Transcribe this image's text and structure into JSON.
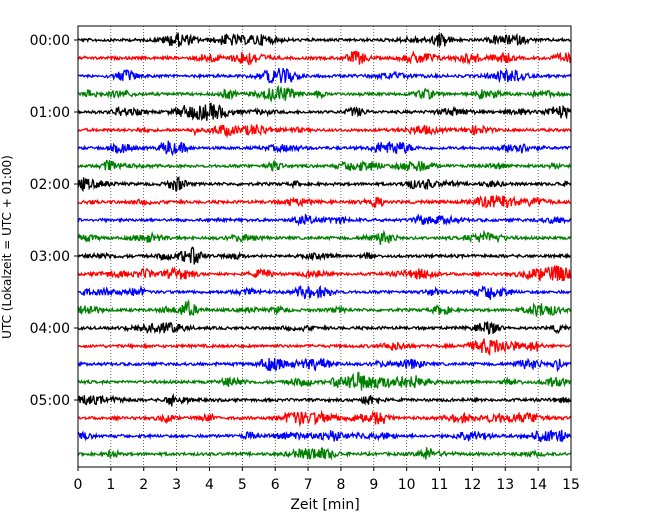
{
  "chart_data": {
    "type": "line",
    "title": "",
    "xlabel": "Zeit  [min]",
    "ylabel": "UTC (Lokalzeit = UTC + 01:00)",
    "xlim": [
      0,
      15
    ],
    "x_ticks": [
      "0",
      "1",
      "2",
      "3",
      "4",
      "5",
      "6",
      "7",
      "8",
      "9",
      "10",
      "11",
      "12",
      "13",
      "14",
      "15"
    ],
    "y_ticks": [
      "00:00",
      "01:00",
      "02:00",
      "03:00",
      "04:00",
      "05:00"
    ],
    "grid": "vertical dotted lines at each minute",
    "legend": "none",
    "series_colors": [
      "#000000",
      "#ff0000",
      "#0000ff",
      "#008000"
    ],
    "series": [
      {
        "start": "00:00",
        "color": "#000000"
      },
      {
        "start": "00:15",
        "color": "#ff0000"
      },
      {
        "start": "00:30",
        "color": "#0000ff"
      },
      {
        "start": "00:45",
        "color": "#008000"
      },
      {
        "start": "01:00",
        "color": "#000000"
      },
      {
        "start": "01:15",
        "color": "#ff0000"
      },
      {
        "start": "01:30",
        "color": "#0000ff"
      },
      {
        "start": "01:45",
        "color": "#008000"
      },
      {
        "start": "02:00",
        "color": "#000000"
      },
      {
        "start": "02:15",
        "color": "#ff0000"
      },
      {
        "start": "02:30",
        "color": "#0000ff"
      },
      {
        "start": "02:45",
        "color": "#008000"
      },
      {
        "start": "03:00",
        "color": "#000000"
      },
      {
        "start": "03:15",
        "color": "#ff0000"
      },
      {
        "start": "03:30",
        "color": "#0000ff"
      },
      {
        "start": "03:45",
        "color": "#008000"
      },
      {
        "start": "04:00",
        "color": "#000000"
      },
      {
        "start": "04:15",
        "color": "#ff0000"
      },
      {
        "start": "04:30",
        "color": "#0000ff"
      },
      {
        "start": "04:45",
        "color": "#008000"
      },
      {
        "start": "05:00",
        "color": "#000000"
      },
      {
        "start": "05:15",
        "color": "#ff0000"
      },
      {
        "start": "05:30",
        "color": "#0000ff"
      },
      {
        "start": "05:45",
        "color": "#008000"
      }
    ]
  }
}
